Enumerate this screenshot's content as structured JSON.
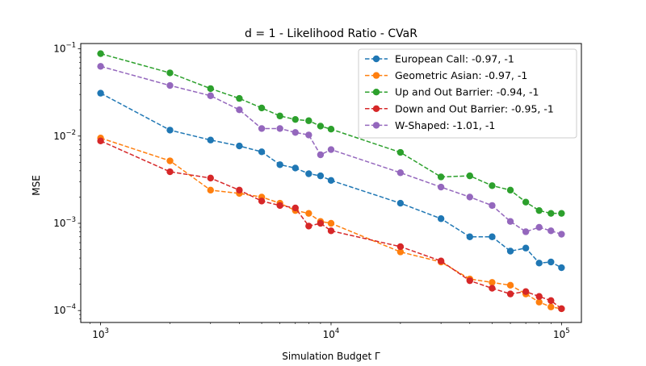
{
  "chart_data": {
    "type": "line",
    "title": "d = 1 - Likelihood Ratio - CVaR",
    "xlabel": "Simulation Budget Γ",
    "ylabel": "MSE",
    "xscale": "log",
    "yscale": "log",
    "xlim": [
      820,
      122000
    ],
    "ylim": [
      7.3e-05,
      0.115
    ],
    "grid": false,
    "legend_position": "top-right",
    "x_ticks": [
      {
        "value": 1000,
        "base": "10",
        "exp": "3"
      },
      {
        "value": 10000,
        "base": "10",
        "exp": "4"
      },
      {
        "value": 100000,
        "base": "10",
        "exp": "5"
      }
    ],
    "y_ticks": [
      {
        "value": 0.0001,
        "base": "10",
        "exp": "−4"
      },
      {
        "value": 0.001,
        "base": "10",
        "exp": "−3"
      },
      {
        "value": 0.01,
        "base": "10",
        "exp": "−2"
      },
      {
        "value": 0.1,
        "base": "10",
        "exp": "−1"
      }
    ],
    "x": [
      1000,
      2000,
      3000,
      4000,
      5000,
      6000,
      7000,
      8000,
      9000,
      10000,
      20000,
      30000,
      40000,
      50000,
      60000,
      70000,
      80000,
      90000,
      100000
    ],
    "series": [
      {
        "name": "European Call: -0.97, -1",
        "color": "#1f77b4",
        "values": [
          0.031,
          0.0117,
          0.009,
          0.0077,
          0.0066,
          0.0047,
          0.0043,
          0.0037,
          0.0035,
          0.0031,
          0.0017,
          0.00113,
          0.0007,
          0.0007,
          0.00048,
          0.00052,
          0.00035,
          0.00036,
          0.00031
        ]
      },
      {
        "name": "Geometric Asian: -0.97, -1",
        "color": "#ff7f0e",
        "values": [
          0.0095,
          0.0052,
          0.0024,
          0.0022,
          0.002,
          0.0017,
          0.0014,
          0.0013,
          0.00105,
          0.001,
          0.00047,
          0.00036,
          0.00023,
          0.00021,
          0.000195,
          0.000155,
          0.000125,
          0.00011,
          0.000105
        ]
      },
      {
        "name": "Up and Out Barrier: -0.94, -1",
        "color": "#2ca02c",
        "values": [
          0.088,
          0.053,
          0.035,
          0.027,
          0.021,
          0.017,
          0.0155,
          0.015,
          0.013,
          0.012,
          0.0065,
          0.0034,
          0.0035,
          0.0027,
          0.0024,
          0.00175,
          0.0014,
          0.0013,
          0.0013
        ]
      },
      {
        "name": "Down and Out Barrier: -0.95, -1",
        "color": "#d62728",
        "values": [
          0.0088,
          0.0039,
          0.0033,
          0.0024,
          0.0018,
          0.0016,
          0.0015,
          0.00093,
          0.001,
          0.00082,
          0.00054,
          0.00037,
          0.00022,
          0.00018,
          0.000155,
          0.000165,
          0.000145,
          0.00013,
          0.000105
        ]
      },
      {
        "name": "W-Shaped: -1.01, -1",
        "color": "#9467bd",
        "values": [
          0.063,
          0.038,
          0.029,
          0.02,
          0.0122,
          0.0122,
          0.011,
          0.0103,
          0.0061,
          0.007,
          0.0038,
          0.0026,
          0.002,
          0.0016,
          0.00105,
          0.0008,
          0.0009,
          0.00082,
          0.00075
        ]
      }
    ]
  }
}
